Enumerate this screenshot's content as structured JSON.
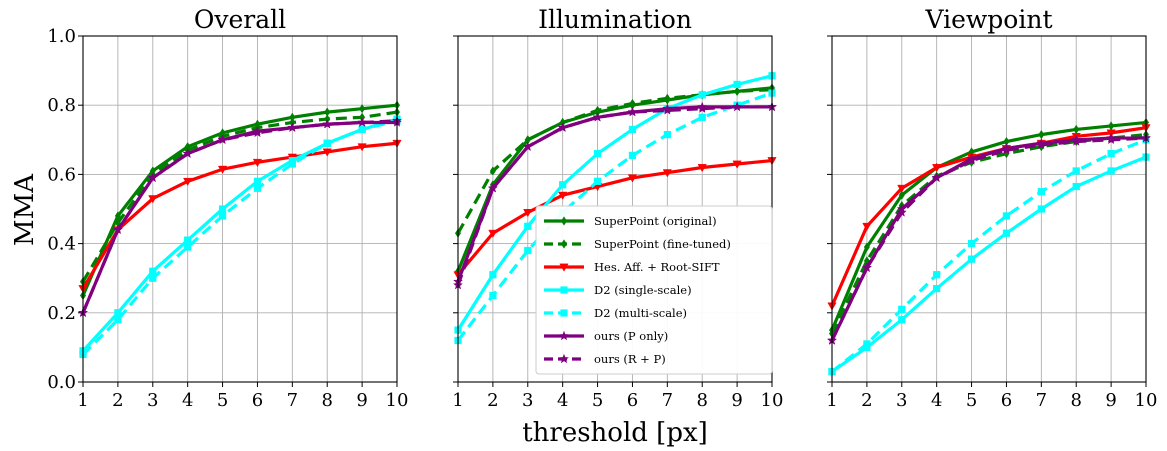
{
  "figure": {
    "ylabel": "MMA",
    "xlabel": "threshold [px]"
  },
  "legend": {
    "entries": [
      {
        "label": "SuperPoint (original)",
        "color": "#008000",
        "dash": false,
        "marker": "diamond"
      },
      {
        "label": "SuperPoint (fine-tuned)",
        "color": "#008000",
        "dash": true,
        "marker": "diamond"
      },
      {
        "label": "Hes. Aff. + Root-SIFT",
        "color": "#ff0000",
        "dash": false,
        "marker": "triangle-down"
      },
      {
        "label": "D2 (single-scale)",
        "color": "#00ffff",
        "dash": false,
        "marker": "square"
      },
      {
        "label": "D2 (multi-scale)",
        "color": "#00ffff",
        "dash": true,
        "marker": "square"
      },
      {
        "label": "ours (P only)",
        "color": "#800080",
        "dash": false,
        "marker": "star"
      },
      {
        "label": "ours (R + P)",
        "color": "#800080",
        "dash": true,
        "marker": "star"
      }
    ]
  },
  "chart_data": [
    {
      "type": "line",
      "title": "Overall",
      "x": [
        1,
        2,
        3,
        4,
        5,
        6,
        7,
        8,
        9,
        10
      ],
      "xlim": [
        1,
        10
      ],
      "ylim": [
        0,
        1
      ],
      "yticks": [
        "0.0",
        "0.2",
        "0.4",
        "0.6",
        "0.8",
        "1.0"
      ],
      "grid": true,
      "series": [
        {
          "name": "SuperPoint (original)",
          "values": [
            0.25,
            0.48,
            0.61,
            0.68,
            0.72,
            0.745,
            0.765,
            0.78,
            0.79,
            0.8
          ]
        },
        {
          "name": "SuperPoint (fine-tuned)",
          "values": [
            0.29,
            0.46,
            0.6,
            0.67,
            0.71,
            0.735,
            0.75,
            0.76,
            0.765,
            0.78
          ]
        },
        {
          "name": "Hes. Aff. + Root-SIFT",
          "values": [
            0.27,
            0.44,
            0.53,
            0.58,
            0.615,
            0.635,
            0.65,
            0.665,
            0.68,
            0.69
          ]
        },
        {
          "name": "D2 (single-scale)",
          "values": [
            0.09,
            0.2,
            0.32,
            0.41,
            0.5,
            0.58,
            0.64,
            0.69,
            0.73,
            0.76
          ]
        },
        {
          "name": "D2 (multi-scale)",
          "values": [
            0.08,
            0.18,
            0.3,
            0.39,
            0.48,
            0.56,
            0.63,
            0.69,
            0.73,
            0.755
          ]
        },
        {
          "name": "ours (P only)",
          "values": [
            0.2,
            0.44,
            0.59,
            0.66,
            0.7,
            0.725,
            0.735,
            0.745,
            0.75,
            0.75
          ]
        },
        {
          "name": "ours (R + P)",
          "values": [
            0.2,
            0.44,
            0.59,
            0.66,
            0.7,
            0.72,
            0.735,
            0.745,
            0.75,
            0.755
          ]
        }
      ]
    },
    {
      "type": "line",
      "title": "Illumination",
      "x": [
        1,
        2,
        3,
        4,
        5,
        6,
        7,
        8,
        9,
        10
      ],
      "xlim": [
        1,
        10
      ],
      "ylim": [
        0,
        1
      ],
      "yticks": [],
      "grid": true,
      "series": [
        {
          "name": "SuperPoint (original)",
          "values": [
            0.32,
            0.57,
            0.7,
            0.75,
            0.78,
            0.8,
            0.815,
            0.83,
            0.84,
            0.85
          ]
        },
        {
          "name": "SuperPoint (fine-tuned)",
          "values": [
            0.43,
            0.61,
            0.7,
            0.75,
            0.785,
            0.805,
            0.82,
            0.83,
            0.84,
            0.845
          ]
        },
        {
          "name": "Hes. Aff. + Root-SIFT",
          "values": [
            0.31,
            0.43,
            0.49,
            0.54,
            0.565,
            0.59,
            0.605,
            0.62,
            0.63,
            0.64
          ]
        },
        {
          "name": "D2 (single-scale)",
          "values": [
            0.15,
            0.31,
            0.45,
            0.57,
            0.66,
            0.73,
            0.79,
            0.83,
            0.86,
            0.885
          ]
        },
        {
          "name": "D2 (multi-scale)",
          "values": [
            0.12,
            0.25,
            0.38,
            0.49,
            0.58,
            0.655,
            0.715,
            0.765,
            0.8,
            0.835
          ]
        },
        {
          "name": "ours (P only)",
          "values": [
            0.29,
            0.56,
            0.68,
            0.735,
            0.765,
            0.78,
            0.79,
            0.795,
            0.795,
            0.795
          ]
        },
        {
          "name": "ours (R + P)",
          "values": [
            0.28,
            0.56,
            0.68,
            0.735,
            0.765,
            0.78,
            0.785,
            0.79,
            0.795,
            0.795
          ]
        }
      ]
    },
    {
      "type": "line",
      "title": "Viewpoint",
      "x": [
        1,
        2,
        3,
        4,
        5,
        6,
        7,
        8,
        9,
        10
      ],
      "xlim": [
        1,
        10
      ],
      "ylim": [
        0,
        1
      ],
      "yticks": [],
      "grid": true,
      "series": [
        {
          "name": "SuperPoint (original)",
          "values": [
            0.15,
            0.39,
            0.54,
            0.62,
            0.665,
            0.695,
            0.715,
            0.73,
            0.74,
            0.75
          ]
        },
        {
          "name": "SuperPoint (fine-tuned)",
          "values": [
            0.14,
            0.35,
            0.51,
            0.595,
            0.635,
            0.66,
            0.68,
            0.695,
            0.705,
            0.715
          ]
        },
        {
          "name": "Hes. Aff. + Root-SIFT",
          "values": [
            0.22,
            0.45,
            0.56,
            0.62,
            0.65,
            0.675,
            0.69,
            0.71,
            0.72,
            0.735
          ]
        },
        {
          "name": "D2 (single-scale)",
          "values": [
            0.03,
            0.1,
            0.18,
            0.27,
            0.355,
            0.43,
            0.5,
            0.565,
            0.61,
            0.65
          ]
        },
        {
          "name": "D2 (multi-scale)",
          "values": [
            0.03,
            0.11,
            0.21,
            0.31,
            0.4,
            0.48,
            0.55,
            0.61,
            0.66,
            0.7
          ]
        },
        {
          "name": "ours (P only)",
          "values": [
            0.12,
            0.33,
            0.5,
            0.59,
            0.645,
            0.675,
            0.69,
            0.7,
            0.705,
            0.705
          ]
        },
        {
          "name": "ours (R + P)",
          "values": [
            0.12,
            0.33,
            0.49,
            0.59,
            0.64,
            0.67,
            0.685,
            0.695,
            0.7,
            0.705
          ]
        }
      ]
    }
  ]
}
